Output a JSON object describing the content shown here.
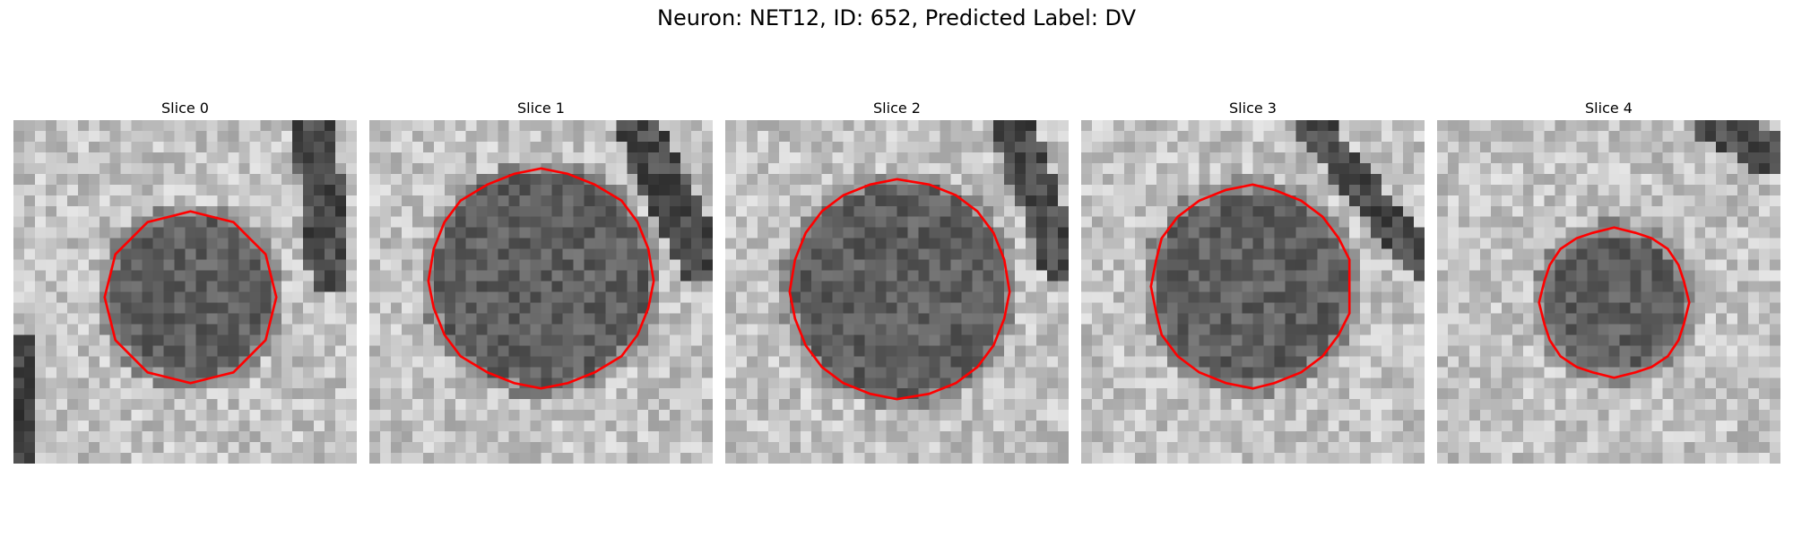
{
  "figure": {
    "title": "Neuron: NET12, ID: 652, Predicted Label: DV"
  },
  "panels": [
    {
      "title": "Slice 0",
      "contour_color": "#ff0000",
      "image": "grayscale-microscopy-patch"
    },
    {
      "title": "Slice 1",
      "contour_color": "#ff0000",
      "image": "grayscale-microscopy-patch"
    },
    {
      "title": "Slice 2",
      "contour_color": "#ff0000",
      "image": "grayscale-microscopy-patch"
    },
    {
      "title": "Slice 3",
      "contour_color": "#ff0000",
      "image": "grayscale-microscopy-patch"
    },
    {
      "title": "Slice 4",
      "contour_color": "#ff0000",
      "image": "grayscale-microscopy-patch"
    }
  ]
}
